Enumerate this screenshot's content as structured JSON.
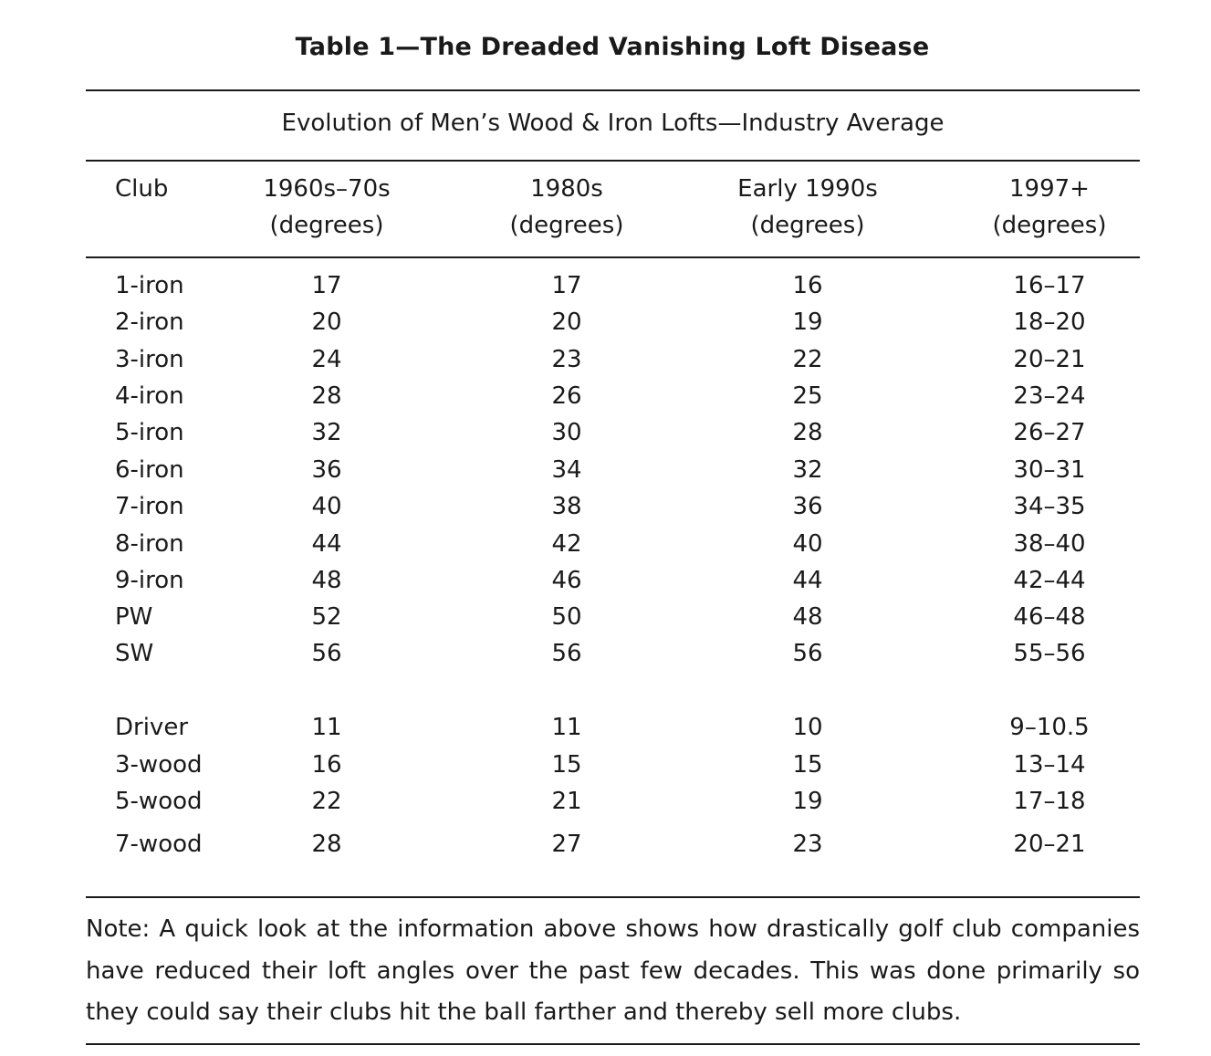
{
  "title": "Table 1—The Dreaded Vanishing Loft Disease",
  "subtitle": "Evolution of Men’s Wood & Iron Lofts—Industry Average",
  "columns": [
    {
      "line1": "Club",
      "line2": ""
    },
    {
      "line1": "1960s–70s",
      "line2": "(degrees)"
    },
    {
      "line1": "1980s",
      "line2": "(degrees)"
    },
    {
      "line1": "Early 1990s",
      "line2": "(degrees)"
    },
    {
      "line1": "1997+",
      "line2": "(degrees)"
    }
  ],
  "irons": [
    {
      "club": "1-iron",
      "v1": "17",
      "v2": "17",
      "v3": "16",
      "v4": "16–17"
    },
    {
      "club": "2-iron",
      "v1": "20",
      "v2": "20",
      "v3": "19",
      "v4": "18–20"
    },
    {
      "club": "3-iron",
      "v1": "24",
      "v2": "23",
      "v3": "22",
      "v4": "20–21"
    },
    {
      "club": "4-iron",
      "v1": "28",
      "v2": "26",
      "v3": "25",
      "v4": "23–24"
    },
    {
      "club": "5-iron",
      "v1": "32",
      "v2": "30",
      "v3": "28",
      "v4": "26–27"
    },
    {
      "club": "6-iron",
      "v1": "36",
      "v2": "34",
      "v3": "32",
      "v4": "30–31"
    },
    {
      "club": "7-iron",
      "v1": "40",
      "v2": "38",
      "v3": "36",
      "v4": "34–35"
    },
    {
      "club": "8-iron",
      "v1": "44",
      "v2": "42",
      "v3": "40",
      "v4": "38–40"
    },
    {
      "club": "9-iron",
      "v1": "48",
      "v2": "46",
      "v3": "44",
      "v4": "42–44"
    },
    {
      "club": "PW",
      "v1": "52",
      "v2": "50",
      "v3": "48",
      "v4": "46–48"
    },
    {
      "club": "SW",
      "v1": "56",
      "v2": "56",
      "v3": "56",
      "v4": "55–56"
    }
  ],
  "woods": [
    {
      "club": "Driver",
      "v1": "11",
      "v2": "11",
      "v3": "10",
      "v4": "9–10.5"
    },
    {
      "club": "3-wood",
      "v1": "16",
      "v2": "15",
      "v3": "15",
      "v4": "13–14"
    },
    {
      "club": "5-wood",
      "v1": "22",
      "v2": "21",
      "v3": "19",
      "v4": "17–18"
    },
    {
      "club": "7-wood",
      "v1": "28",
      "v2": "27",
      "v3": "23",
      "v4": "20–21"
    }
  ],
  "note": "Note: A quick look at the information above shows how drastically golf club companies have reduced their loft angles over the past few decades. This was done primarily so they could say their clubs hit the ball farther and thereby sell more clubs."
}
